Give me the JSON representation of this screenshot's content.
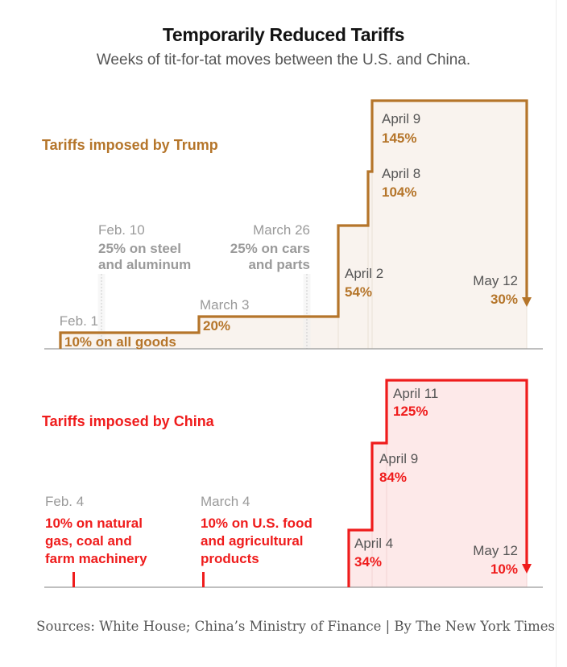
{
  "header": {
    "title": "Temporarily Reduced Tariffs",
    "subtitle": "Weeks of tit-for-tat moves between the U.S. and China."
  },
  "footer": {
    "source": "Sources: White House; China’s Ministry of Finance | By The New York Times"
  },
  "colors": {
    "us": "#b5752a",
    "china": "#ef1c1c",
    "gray": "#9a9a9a",
    "us_fill": "#f9f3ee",
    "china_fill": "#fde9e9"
  },
  "chart_data": [
    {
      "type": "area",
      "title": "Tariffs imposed by Trump",
      "series_color": "#b5752a",
      "steps": [
        {
          "date": "Feb. 1",
          "value": 10,
          "label": "10% on all goods"
        },
        {
          "date": "March 3",
          "value": 20,
          "label": "20%"
        },
        {
          "date": "April 2",
          "value": 54,
          "label": "54%"
        },
        {
          "date": "April 8",
          "value": 104,
          "label": "104%"
        },
        {
          "date": "April 9",
          "value": 145,
          "label": "145%"
        },
        {
          "date": "May 12",
          "value": 30,
          "label": "30%"
        }
      ],
      "sector_tariffs": [
        {
          "date": "Feb. 10",
          "label_line1": "25% on steel",
          "label_line2": "and aluminum"
        },
        {
          "date": "March 26",
          "label_line1": "25% on cars",
          "label_line2": "and parts"
        }
      ]
    },
    {
      "type": "area",
      "title": "Tariffs imposed by China",
      "series_color": "#ef1c1c",
      "steps": [
        {
          "date": "April 4",
          "value": 34,
          "label": "34%"
        },
        {
          "date": "April 9",
          "value": 84,
          "label": "84%"
        },
        {
          "date": "April 11",
          "value": 125,
          "label": "125%"
        },
        {
          "date": "May 12",
          "value": 10,
          "label": "10%"
        }
      ],
      "sector_tariffs": [
        {
          "date": "Feb. 4",
          "label_line1": "10% on natural",
          "label_line2": "gas, coal and",
          "label_line3": "farm machinery"
        },
        {
          "date": "March 4",
          "label_line1": "10% on U.S. food",
          "label_line2": "and agricultural",
          "label_line3": "products"
        }
      ]
    }
  ]
}
